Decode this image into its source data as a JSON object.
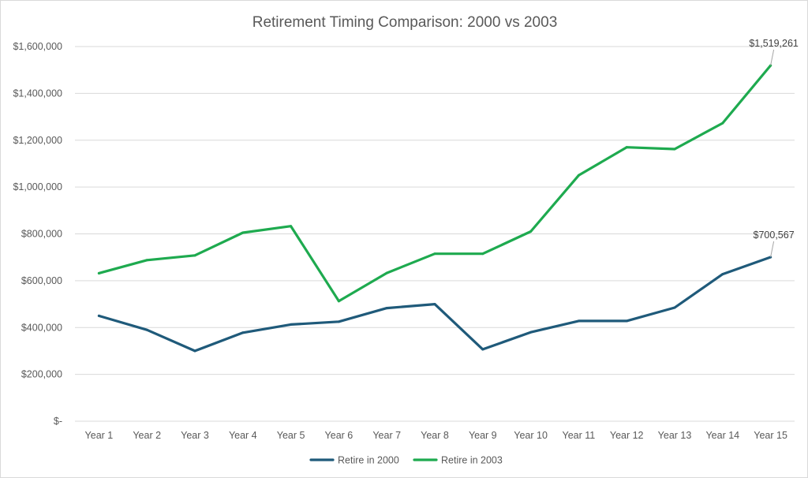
{
  "chart_data": {
    "type": "line",
    "title": "Retirement Timing Comparison: 2000 vs 2003",
    "categories": [
      "Year 1",
      "Year 2",
      "Year 3",
      "Year 4",
      "Year 5",
      "Year 6",
      "Year 7",
      "Year 8",
      "Year 9",
      "Year 10",
      "Year 11",
      "Year 12",
      "Year 13",
      "Year 14",
      "Year 15"
    ],
    "ylim": [
      0,
      1600000
    ],
    "yticks": [
      0,
      200000,
      400000,
      600000,
      800000,
      1000000,
      1200000,
      1400000,
      1600000
    ],
    "ytick_labels": [
      "$-",
      "$200,000",
      "$400,000",
      "$600,000",
      "$800,000",
      "$1,000,000",
      "$1,200,000",
      "$1,400,000",
      "$1,600,000"
    ],
    "grid": true,
    "legend_position": "bottom",
    "series": [
      {
        "name": "Retire in 2000",
        "color": "#1f5a7a",
        "values": [
          450000,
          390000,
          300000,
          378000,
          413000,
          425000,
          483000,
          500000,
          307000,
          380000,
          428000,
          428000,
          485000,
          628000,
          700567
        ],
        "end_label": "$700,567"
      },
      {
        "name": "Retire in 2003",
        "color": "#1eaa4f",
        "values": [
          632000,
          688000,
          708000,
          805000,
          833000,
          513000,
          633000,
          715000,
          715000,
          810000,
          1050000,
          1170000,
          1162000,
          1273000,
          1519261
        ],
        "end_label": "$1,519,261"
      }
    ]
  }
}
